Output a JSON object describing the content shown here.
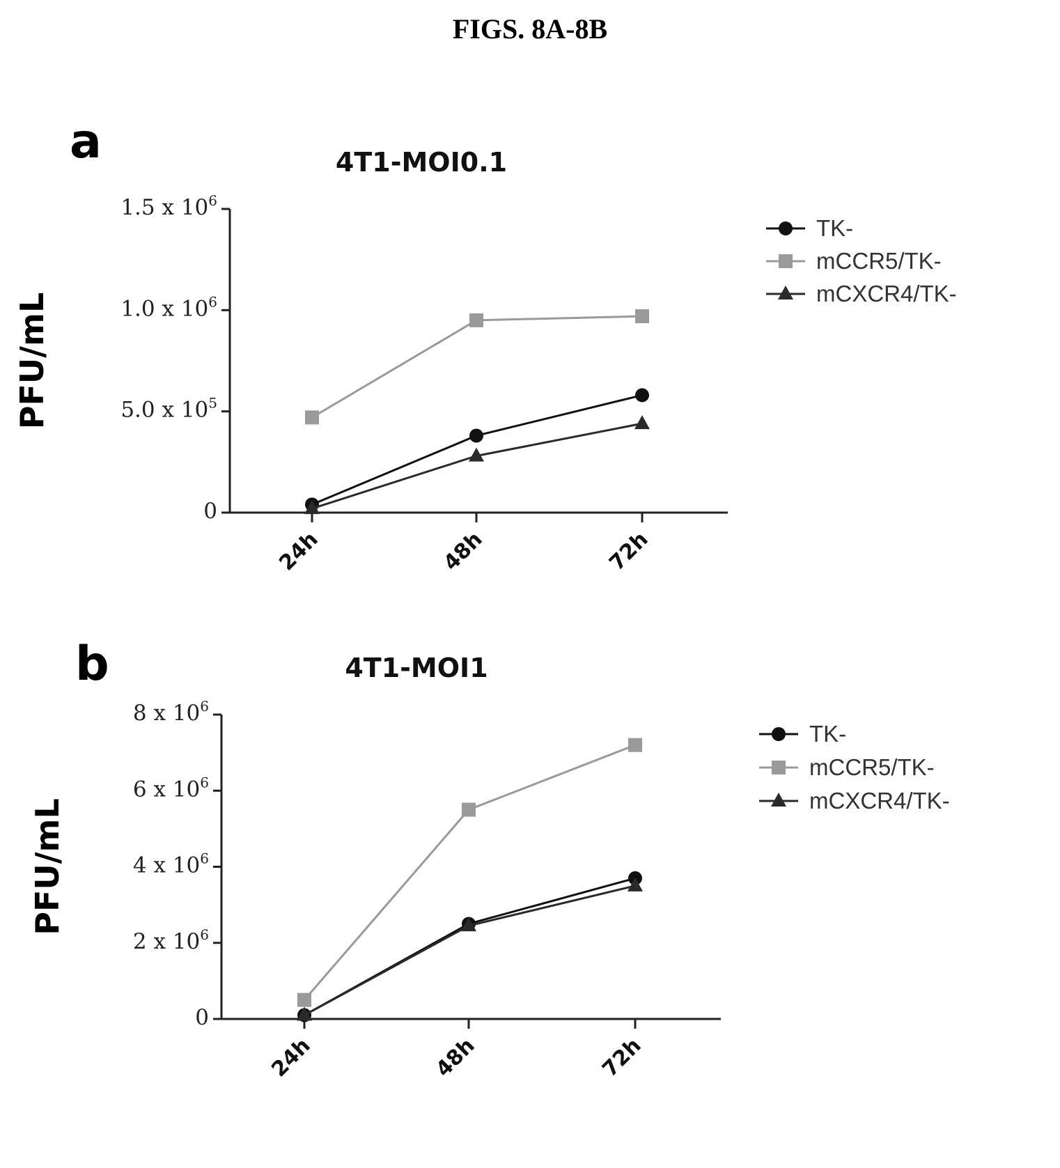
{
  "figure_title": "FIGS. 8A-8B",
  "colors": {
    "TK-": "#111111",
    "mCCR5/TK-": "#9a9a9a",
    "mCXCR4/TK-": "#2a2a2a"
  },
  "chart_data": [
    {
      "panel": "a",
      "type": "line",
      "title": "4T1-MOI0.1",
      "ylabel": "PFU/mL",
      "xlabel": "",
      "categories": [
        "24h",
        "48h",
        "72h"
      ],
      "ylim": [
        0,
        1500000
      ],
      "yticks": [
        {
          "value": 0,
          "base": "0",
          "exp": ""
        },
        {
          "value": 500000,
          "base": "5.0 x 10",
          "exp": "5"
        },
        {
          "value": 1000000,
          "base": "1.0 x 10",
          "exp": "6"
        },
        {
          "value": 1500000,
          "base": "1.5 x 10",
          "exp": "6"
        }
      ],
      "legend_position": "top-right",
      "series": [
        {
          "name": "TK-",
          "marker": "circle",
          "values": [
            40000,
            380000,
            580000
          ]
        },
        {
          "name": "mCCR5/TK-",
          "marker": "square",
          "values": [
            470000,
            950000,
            970000
          ]
        },
        {
          "name": "mCXCR4/TK-",
          "marker": "triangle",
          "values": [
            20000,
            280000,
            440000
          ]
        }
      ]
    },
    {
      "panel": "b",
      "type": "line",
      "title": "4T1-MOI1",
      "ylabel": "PFU/mL",
      "xlabel": "",
      "categories": [
        "24h",
        "48h",
        "72h"
      ],
      "ylim": [
        0,
        8000000
      ],
      "yticks": [
        {
          "value": 0,
          "base": "0",
          "exp": ""
        },
        {
          "value": 2000000,
          "base": "2 x 10",
          "exp": "6"
        },
        {
          "value": 4000000,
          "base": "4 x 10",
          "exp": "6"
        },
        {
          "value": 6000000,
          "base": "6 x 10",
          "exp": "6"
        },
        {
          "value": 8000000,
          "base": "8 x 10",
          "exp": "6"
        }
      ],
      "legend_position": "top-right",
      "series": [
        {
          "name": "TK-",
          "marker": "circle",
          "values": [
            100000,
            2500000,
            3700000
          ]
        },
        {
          "name": "mCCR5/TK-",
          "marker": "square",
          "values": [
            500000,
            5500000,
            7200000
          ]
        },
        {
          "name": "mCXCR4/TK-",
          "marker": "triangle",
          "values": [
            100000,
            2450000,
            3500000
          ]
        }
      ]
    }
  ]
}
